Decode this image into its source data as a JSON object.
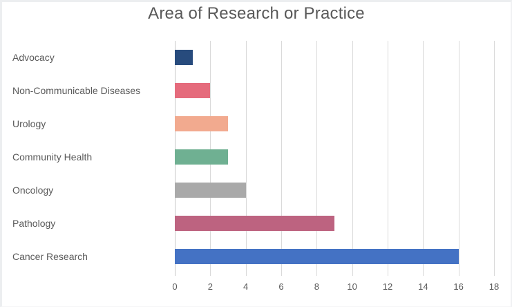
{
  "chart_data": {
    "type": "bar",
    "orientation": "horizontal",
    "title": "Area of Research or Practice",
    "categories": [
      "Advocacy",
      "Non-Communicable Diseases",
      "Urology",
      "Community Health",
      "Oncology",
      "Pathology",
      "Cancer Research"
    ],
    "values": [
      1,
      2,
      3,
      3,
      4,
      9,
      16
    ],
    "bar_colors": [
      "#274b7d",
      "#e56b7c",
      "#f2aa8f",
      "#6fb092",
      "#a9a9a9",
      "#bd6380",
      "#4472c4"
    ],
    "xlabel": "",
    "ylabel": "",
    "xlim": [
      0,
      18
    ],
    "x_ticks": [
      0,
      2,
      4,
      6,
      8,
      10,
      12,
      14,
      16,
      18
    ],
    "grid": true,
    "legend": false,
    "colors": {
      "gridline": "#d9d9d9",
      "zero_line": "#c9c9c9",
      "axis_text": "#595959",
      "title_text": "#595959",
      "background": "#ffffff"
    }
  }
}
